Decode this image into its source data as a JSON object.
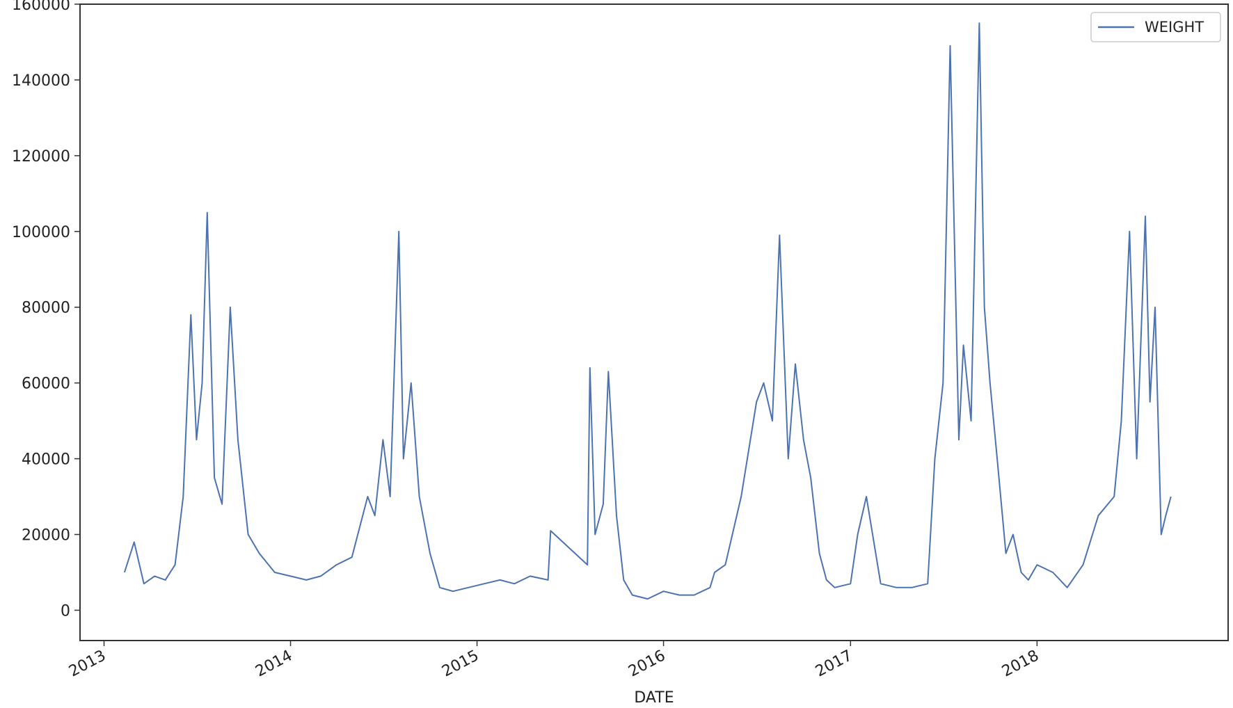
{
  "chart_data": {
    "type": "line",
    "title": "",
    "xlabel": "DATE",
    "ylabel": "",
    "ylim": [
      -8000,
      160000
    ],
    "yticks": [
      0,
      20000,
      40000,
      60000,
      80000,
      100000,
      120000,
      140000,
      160000
    ],
    "ytick_labels": [
      "0",
      "20000",
      "40000",
      "60000",
      "80000",
      "100000",
      "120000",
      "140000",
      "160000"
    ],
    "xlim": [
      "2012-11-15",
      "2019-01-10"
    ],
    "xticks": [
      "2013-01-01",
      "2014-01-01",
      "2015-01-01",
      "2016-01-01",
      "2017-01-01",
      "2018-01-01"
    ],
    "xtick_labels": [
      "2013",
      "2014",
      "2015",
      "2016",
      "2017",
      "2018"
    ],
    "legend": {
      "position": "top-right",
      "entries": [
        "WEIGHT"
      ]
    },
    "grid": false,
    "series": [
      {
        "name": "WEIGHT",
        "color": "#4c72b0",
        "x": [
          "2013-02-10",
          "2013-03-01",
          "2013-03-20",
          "2013-04-10",
          "2013-05-01",
          "2013-05-20",
          "2013-06-05",
          "2013-06-20",
          "2013-07-01",
          "2013-07-12",
          "2013-07-22",
          "2013-08-05",
          "2013-08-20",
          "2013-09-05",
          "2013-09-20",
          "2013-10-10",
          "2013-11-01",
          "2013-12-01",
          "2014-01-01",
          "2014-02-01",
          "2014-03-01",
          "2014-04-01",
          "2014-05-01",
          "2014-06-01",
          "2014-06-15",
          "2014-07-01",
          "2014-07-15",
          "2014-08-01",
          "2014-08-10",
          "2014-08-25",
          "2014-09-10",
          "2014-10-01",
          "2014-10-20",
          "2014-11-15",
          "2014-12-15",
          "2015-01-15",
          "2015-02-15",
          "2015-03-15",
          "2015-04-15",
          "2015-05-20",
          "2015-05-25",
          "2015-08-05",
          "2015-08-10",
          "2015-08-20",
          "2015-09-05",
          "2015-09-15",
          "2015-10-01",
          "2015-10-15",
          "2015-11-01",
          "2015-12-01",
          "2016-01-01",
          "2016-02-01",
          "2016-03-01",
          "2016-04-01",
          "2016-04-10",
          "2016-05-01",
          "2016-06-01",
          "2016-07-01",
          "2016-07-15",
          "2016-08-01",
          "2016-08-15",
          "2016-09-01",
          "2016-09-15",
          "2016-10-01",
          "2016-10-15",
          "2016-11-01",
          "2016-11-15",
          "2016-12-01",
          "2017-01-01",
          "2017-01-15",
          "2017-02-01",
          "2017-03-01",
          "2017-04-01",
          "2017-05-01",
          "2017-06-01",
          "2017-06-15",
          "2017-07-01",
          "2017-07-15",
          "2017-08-01",
          "2017-08-10",
          "2017-08-25",
          "2017-09-10",
          "2017-09-20",
          "2017-10-01",
          "2017-10-15",
          "2017-11-01",
          "2017-11-15",
          "2017-12-01",
          "2017-12-15",
          "2018-01-01",
          "2018-02-01",
          "2018-03-01",
          "2018-04-01",
          "2018-05-01",
          "2018-06-01",
          "2018-06-15",
          "2018-07-01",
          "2018-07-15",
          "2018-08-01",
          "2018-08-10",
          "2018-08-20",
          "2018-09-01",
          "2018-09-10",
          "2018-09-20"
        ],
        "values": [
          10000,
          18000,
          7000,
          9000,
          8000,
          12000,
          30000,
          78000,
          45000,
          60000,
          105000,
          35000,
          28000,
          80000,
          45000,
          20000,
          15000,
          10000,
          9000,
          8000,
          9000,
          12000,
          14000,
          30000,
          25000,
          45000,
          30000,
          100000,
          40000,
          60000,
          30000,
          15000,
          6000,
          5000,
          6000,
          7000,
          8000,
          7000,
          9000,
          8000,
          21000,
          12000,
          64000,
          20000,
          28000,
          63000,
          25000,
          8000,
          4000,
          3000,
          5000,
          4000,
          4000,
          6000,
          10000,
          12000,
          30000,
          55000,
          60000,
          50000,
          99000,
          40000,
          65000,
          45000,
          35000,
          15000,
          8000,
          6000,
          7000,
          20000,
          30000,
          7000,
          6000,
          6000,
          7000,
          40000,
          60000,
          149000,
          45000,
          70000,
          50000,
          155000,
          80000,
          60000,
          40000,
          15000,
          20000,
          10000,
          8000,
          12000,
          10000,
          6000,
          12000,
          25000,
          30000,
          50000,
          100000,
          40000,
          104000,
          55000,
          80000,
          20000,
          25000,
          30000
        ]
      }
    ]
  }
}
